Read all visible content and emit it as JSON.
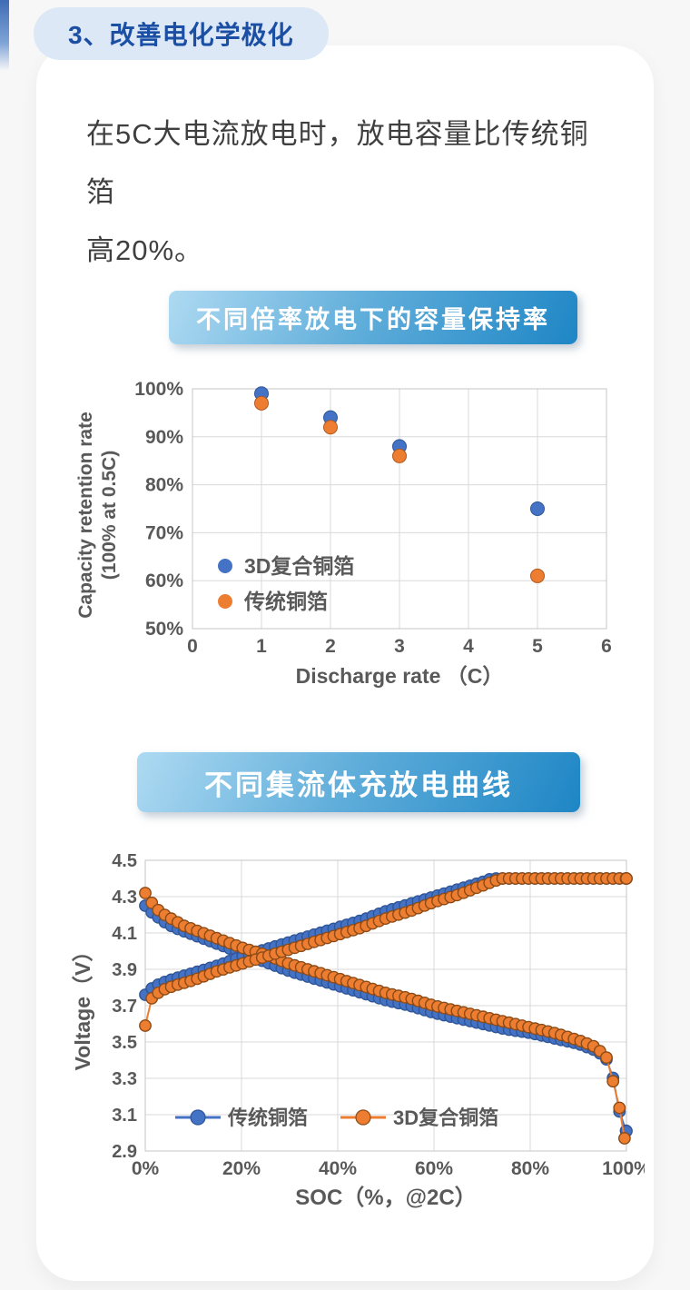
{
  "page": {
    "section_badge": "3、改善电化学极化",
    "body_text_line1": "在5C大电流放电时，放电容量比传统铜箔",
    "body_text_line2": "高20%。"
  },
  "colors": {
    "badge_bg": "#dce8f6",
    "badge_text": "#1b4fa3",
    "banner_gradient_start": "#aedaf2",
    "banner_gradient_end": "#1e86c5",
    "series_blue": "#4472C4",
    "series_orange": "#ED7D31",
    "axis_text": "#595959",
    "gridline": "#D9D9D9"
  },
  "chart_data": [
    {
      "type": "scatter",
      "title": "不同倍率放电下的容量保持率",
      "xlabel": "Discharge rate （C）",
      "ylabel_line1": "Capacity retention rate",
      "ylabel_line2": "(100% at 0.5C)",
      "xlim": [
        0,
        6
      ],
      "ylim": [
        50,
        100
      ],
      "x_ticks": [
        "0",
        "1",
        "2",
        "3",
        "4",
        "5",
        "6"
      ],
      "x_tick_values": [
        0,
        1,
        2,
        3,
        4,
        5,
        6
      ],
      "y_ticks": [
        "100%",
        "90%",
        "80%",
        "70%",
        "60%",
        "50%"
      ],
      "y_tick_values": [
        100,
        90,
        80,
        70,
        60,
        50
      ],
      "grid": true,
      "legend_position": "inside-lower-left",
      "series": [
        {
          "name": "3D复合铜箔",
          "color": "#4472C4",
          "stroke": "#2F5597",
          "points": [
            [
              1,
              99
            ],
            [
              2,
              94
            ],
            [
              3,
              88
            ],
            [
              5,
              75
            ]
          ]
        },
        {
          "name": "传统铜箔",
          "color": "#ED7D31",
          "stroke": "#B15A1F",
          "points": [
            [
              1,
              97
            ],
            [
              2,
              92
            ],
            [
              3,
              86
            ],
            [
              5,
              61
            ]
          ]
        }
      ]
    },
    {
      "type": "line",
      "title": "不同集流体充放电曲线",
      "xlabel": "SOC（%，@2C）",
      "ylabel": "Voltage（V）",
      "xlim": [
        0,
        100
      ],
      "ylim": [
        2.9,
        4.5
      ],
      "x_ticks": [
        "0%",
        "20%",
        "40%",
        "60%",
        "80%",
        "100%"
      ],
      "x_tick_values": [
        0,
        20,
        40,
        60,
        80,
        100
      ],
      "y_ticks": [
        "4.5",
        "4.3",
        "4.1",
        "3.9",
        "3.7",
        "3.5",
        "3.3",
        "3.1",
        "2.9"
      ],
      "y_tick_values": [
        4.5,
        4.3,
        4.1,
        3.9,
        3.7,
        3.5,
        3.3,
        3.1,
        2.9
      ],
      "grid": true,
      "legend_position": "inside-bottom-left",
      "marker_step_pct": 1.35,
      "series": [
        {
          "name": "传统铜箔",
          "color": "#4472C4",
          "stroke": "#2F5597",
          "charge_curve": [
            [
              0,
              3.76
            ],
            [
              1,
              3.79
            ],
            [
              3,
              3.82
            ],
            [
              5,
              3.84
            ],
            [
              10,
              3.88
            ],
            [
              15,
              3.92
            ],
            [
              20,
              3.97
            ],
            [
              25,
              4.01
            ],
            [
              30,
              4.05
            ],
            [
              35,
              4.09
            ],
            [
              40,
              4.13
            ],
            [
              45,
              4.17
            ],
            [
              50,
              4.22
            ],
            [
              55,
              4.26
            ],
            [
              60,
              4.3
            ],
            [
              65,
              4.34
            ],
            [
              70,
              4.38
            ],
            [
              72,
              4.4
            ],
            [
              100,
              4.4
            ]
          ],
          "discharge_curve": [
            [
              0,
              4.25
            ],
            [
              1,
              4.22
            ],
            [
              2,
              4.2
            ],
            [
              3,
              4.18
            ],
            [
              4,
              4.16
            ],
            [
              6,
              4.13
            ],
            [
              8,
              4.11
            ],
            [
              10,
              4.09
            ],
            [
              15,
              4.04
            ],
            [
              20,
              3.99
            ],
            [
              25,
              3.94
            ],
            [
              30,
              3.89
            ],
            [
              35,
              3.85
            ],
            [
              40,
              3.81
            ],
            [
              45,
              3.77
            ],
            [
              50,
              3.73
            ],
            [
              55,
              3.7
            ],
            [
              60,
              3.66
            ],
            [
              65,
              3.63
            ],
            [
              70,
              3.6
            ],
            [
              75,
              3.57
            ],
            [
              80,
              3.55
            ],
            [
              85,
              3.52
            ],
            [
              90,
              3.49
            ],
            [
              93,
              3.46
            ],
            [
              95,
              3.43
            ],
            [
              96,
              3.4
            ],
            [
              97,
              3.33
            ],
            [
              98.3,
              3.15
            ],
            [
              99.3,
              3.02
            ],
            [
              100,
              3.01
            ]
          ]
        },
        {
          "name": "3D复合铜箔",
          "color": "#ED7D31",
          "stroke": "#8C4B16",
          "charge_curve": [
            [
              0,
              3.59
            ],
            [
              1,
              3.73
            ],
            [
              2,
              3.76
            ],
            [
              4,
              3.79
            ],
            [
              6,
              3.81
            ],
            [
              10,
              3.84
            ],
            [
              15,
              3.89
            ],
            [
              20,
              3.93
            ],
            [
              25,
              3.97
            ],
            [
              30,
              4.01
            ],
            [
              35,
              4.05
            ],
            [
              40,
              4.09
            ],
            [
              45,
              4.13
            ],
            [
              50,
              4.18
            ],
            [
              55,
              4.22
            ],
            [
              60,
              4.27
            ],
            [
              65,
              4.31
            ],
            [
              70,
              4.36
            ],
            [
              74,
              4.4
            ],
            [
              100,
              4.4
            ]
          ],
          "discharge_curve": [
            [
              0,
              4.32
            ],
            [
              1,
              4.28
            ],
            [
              2,
              4.24
            ],
            [
              3,
              4.22
            ],
            [
              4,
              4.2
            ],
            [
              6,
              4.17
            ],
            [
              8,
              4.14
            ],
            [
              10,
              4.12
            ],
            [
              15,
              4.07
            ],
            [
              20,
              4.02
            ],
            [
              25,
              3.98
            ],
            [
              30,
              3.93
            ],
            [
              35,
              3.89
            ],
            [
              40,
              3.85
            ],
            [
              45,
              3.81
            ],
            [
              50,
              3.77
            ],
            [
              55,
              3.74
            ],
            [
              60,
              3.7
            ],
            [
              65,
              3.67
            ],
            [
              70,
              3.64
            ],
            [
              75,
              3.61
            ],
            [
              80,
              3.58
            ],
            [
              85,
              3.55
            ],
            [
              90,
              3.51
            ],
            [
              93,
              3.48
            ],
            [
              95,
              3.44
            ],
            [
              96,
              3.41
            ],
            [
              97,
              3.3
            ],
            [
              98,
              3.22
            ],
            [
              98.8,
              3.1
            ],
            [
              99.6,
              2.97
            ]
          ]
        }
      ]
    }
  ]
}
